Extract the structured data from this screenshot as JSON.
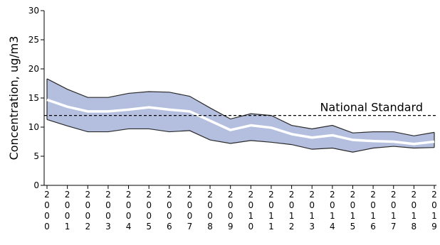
{
  "chart_data": {
    "type": "area",
    "title": "",
    "xlabel": "",
    "ylabel": "Concentration, ug/m3",
    "ylim": [
      0,
      30
    ],
    "yticks": [
      0,
      5,
      10,
      15,
      20,
      25,
      30
    ],
    "x": [
      "2000",
      "2001",
      "2002",
      "2003",
      "2004",
      "2005",
      "2006",
      "2007",
      "2008",
      "2009",
      "2010",
      "2011",
      "2012",
      "2013",
      "2014",
      "2015",
      "2016",
      "2017",
      "2018",
      "2019"
    ],
    "series": [
      {
        "name": "",
        "role": "upper",
        "values": [
          18.3,
          16.5,
          15.1,
          15.1,
          15.8,
          16.1,
          16.0,
          15.3,
          13.3,
          11.4,
          12.3,
          12.0,
          10.3,
          9.7,
          10.3,
          9.0,
          9.2,
          9.2,
          8.5,
          9.1
        ]
      },
      {
        "name": "",
        "role": "mean",
        "values": [
          14.7,
          13.5,
          12.7,
          12.7,
          13.0,
          13.4,
          13.0,
          12.7,
          11.1,
          9.5,
          10.3,
          9.9,
          8.8,
          8.2,
          8.6,
          7.8,
          7.6,
          7.5,
          7.1,
          7.5
        ]
      },
      {
        "name": "",
        "role": "lower",
        "values": [
          11.3,
          10.2,
          9.2,
          9.2,
          9.7,
          9.7,
          9.2,
          9.4,
          7.8,
          7.2,
          7.7,
          7.4,
          7.0,
          6.2,
          6.4,
          5.7,
          6.4,
          6.7,
          6.4,
          6.5
        ]
      }
    ],
    "reference_line": {
      "label": "National Standard",
      "value": 12
    },
    "grid": false,
    "colors": {
      "band_fill": "#b4bfdf",
      "band_stroke": "#2a2a2a",
      "mean_line": "#ffffff",
      "reference": "#000000",
      "axis": "#000000"
    }
  }
}
